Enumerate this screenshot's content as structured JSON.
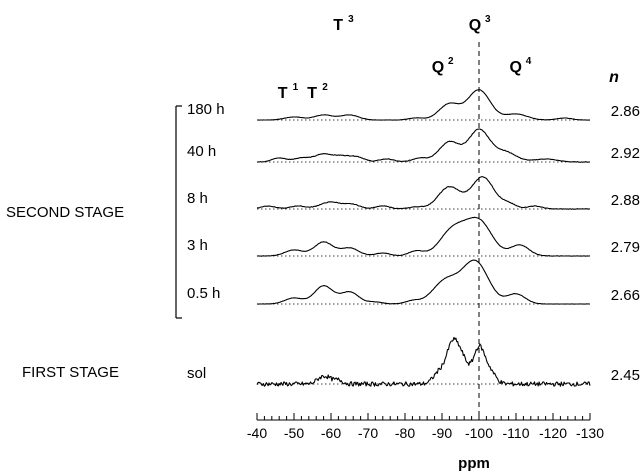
{
  "chart_data": {
    "type": "line",
    "xlabel": "ppm",
    "x_range": [
      -40,
      -130
    ],
    "x_ticks": [
      "-40",
      "-50",
      "-60",
      "-70",
      "-80",
      "-90",
      "-100",
      "-110",
      "-120",
      "-130"
    ],
    "reference_line_x": -100,
    "peak_labels": [
      {
        "base": "T",
        "sup": "1",
        "x": -48
      },
      {
        "base": "T",
        "sup": "2",
        "x": -56
      },
      {
        "base": "T",
        "sup": "3",
        "x": -63
      },
      {
        "base": "Q",
        "sup": "2",
        "x": -90
      },
      {
        "base": "Q",
        "sup": "3",
        "x": -100
      },
      {
        "base": "Q",
        "sup": "4",
        "x": -111
      }
    ],
    "n_header": "n",
    "group_labels": {
      "second": "SECOND STAGE",
      "first": "FIRST STAGE"
    },
    "series": [
      {
        "name": "180 h",
        "n": "2.86",
        "noise": 0.15,
        "peaks": [
          [
            -50,
            3,
            2.5
          ],
          [
            -58,
            5,
            2.5
          ],
          [
            -65,
            5,
            2.5
          ],
          [
            -83,
            2,
            2
          ],
          [
            -92,
            16,
            2.8
          ],
          [
            -100,
            30,
            3
          ],
          [
            -110,
            6,
            3
          ],
          [
            -123,
            2,
            2
          ]
        ]
      },
      {
        "name": "40 h",
        "n": "2.92",
        "noise": 0.3,
        "peaks": [
          [
            -46,
            4,
            2
          ],
          [
            -52,
            4,
            2
          ],
          [
            -58,
            8,
            2.5
          ],
          [
            -63,
            5,
            2
          ],
          [
            -67,
            5,
            2
          ],
          [
            -75,
            3,
            2
          ],
          [
            -84,
            4,
            2
          ],
          [
            -92,
            20,
            2.8
          ],
          [
            -100,
            32,
            2.8
          ],
          [
            -107,
            10,
            3
          ],
          [
            -118,
            3,
            3
          ]
        ]
      },
      {
        "name": "8 h",
        "n": "2.88",
        "noise": 0.3,
        "peaks": [
          [
            -43,
            3,
            2
          ],
          [
            -51,
            3,
            2
          ],
          [
            -60,
            7,
            3
          ],
          [
            -66,
            4,
            2
          ],
          [
            -74,
            3,
            2
          ],
          [
            -83,
            2,
            2
          ],
          [
            -92,
            22,
            3
          ],
          [
            -101,
            32,
            3
          ],
          [
            -108,
            5,
            2
          ],
          [
            -115,
            3,
            2
          ]
        ]
      },
      {
        "name": "3 h",
        "n": "2.79",
        "noise": 0.2,
        "peaks": [
          [
            -50,
            6,
            2.5
          ],
          [
            -58,
            14,
            2.5
          ],
          [
            -65,
            8,
            2.5
          ],
          [
            -74,
            3,
            2
          ],
          [
            -83,
            5,
            2
          ],
          [
            -93,
            26,
            3.5
          ],
          [
            -100,
            34,
            3.5
          ],
          [
            -111,
            11,
            2.5
          ]
        ]
      },
      {
        "name": "0.5 h",
        "n": "2.66",
        "noise": 0.15,
        "peaks": [
          [
            -50,
            6,
            2.5
          ],
          [
            -58,
            18,
            2.5
          ],
          [
            -65,
            12,
            2.5
          ],
          [
            -72,
            2,
            2
          ],
          [
            -82,
            3,
            2
          ],
          [
            -91,
            23,
            3.5
          ],
          [
            -99,
            42,
            3.5
          ],
          [
            -110,
            10,
            2.5
          ]
        ]
      },
      {
        "name": "sol",
        "n": "2.45",
        "noise": 2.2,
        "peaks": [
          [
            -57,
            5,
            1.2
          ],
          [
            -59,
            6,
            1.2
          ],
          [
            -62,
            4,
            1.2
          ],
          [
            -89,
            10,
            1.5
          ],
          [
            -93,
            42,
            1.8
          ],
          [
            -96,
            16,
            1.5
          ],
          [
            -100,
            36,
            1.5
          ],
          [
            -103,
            12,
            1.5
          ]
        ]
      }
    ]
  }
}
